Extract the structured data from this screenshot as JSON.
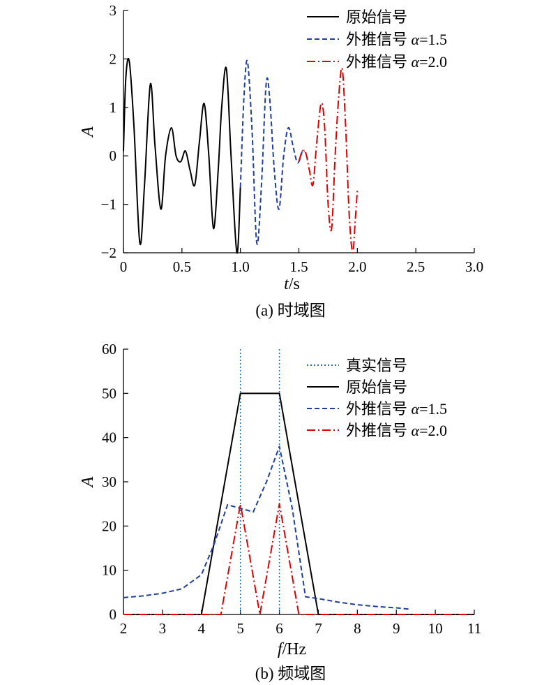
{
  "chart_data": [
    {
      "type": "line",
      "caption": "(a) 时域图",
      "xlabel_var": "t",
      "xlabel_unit": "/s",
      "ylabel": "A",
      "xlim": [
        0,
        3
      ],
      "ylim": [
        -2,
        3
      ],
      "xticks": [
        "0",
        "0.5",
        "1.0",
        "1.5",
        "2.0",
        "2.5",
        "3.0"
      ],
      "xtick_values": [
        0,
        0.5,
        1.0,
        1.5,
        2.0,
        2.5,
        3.0
      ],
      "yticks": [
        "−2",
        "−1",
        "0",
        "1",
        "2",
        "3"
      ],
      "ytick_values": [
        -2,
        -1,
        0,
        1,
        2,
        3
      ],
      "legend_position": "top-right",
      "series": [
        {
          "name": "原始信号",
          "style": "solid",
          "color": "#000000",
          "x_range": [
            0,
            1.0
          ],
          "x": [
            0,
            0.02,
            0.05,
            0.09,
            0.14,
            0.18,
            0.23,
            0.27,
            0.32,
            0.36,
            0.41,
            0.45,
            0.49,
            0.53,
            0.57,
            0.61,
            0.65,
            0.69,
            0.73,
            0.77,
            0.81,
            0.84,
            0.88,
            0.92,
            0.97,
            1.0
          ],
          "y": [
            0.1,
            1.6,
            1.95,
            0.6,
            -1.8,
            -0.6,
            1.48,
            0.2,
            -1.1,
            0.0,
            0.58,
            0.0,
            -0.12,
            0.1,
            -0.3,
            -0.6,
            0.3,
            1.08,
            0.0,
            -1.5,
            -0.3,
            1.0,
            1.8,
            0.0,
            -2.0,
            -0.65
          ]
        },
        {
          "name": "外推信号 α=1.5",
          "style": "dashed",
          "color": "#1f3f9f",
          "x_range": [
            1.0,
            1.55
          ],
          "x": [
            1.0,
            1.03,
            1.06,
            1.1,
            1.14,
            1.18,
            1.22,
            1.25,
            1.29,
            1.33,
            1.37,
            1.41,
            1.45,
            1.48,
            1.5,
            1.53,
            1.55
          ],
          "y": [
            -0.65,
            1.2,
            1.95,
            0.5,
            -1.8,
            -0.6,
            1.48,
            1.2,
            -0.3,
            -1.1,
            0.0,
            0.58,
            0.2,
            -0.1,
            -0.12,
            0.1,
            0.1
          ]
        },
        {
          "name": "外推信号 α=2.0",
          "style": "dashdot",
          "color": "#e00000",
          "x_range": [
            1.5,
            2.0
          ],
          "x": [
            1.5,
            1.53,
            1.56,
            1.59,
            1.62,
            1.65,
            1.69,
            1.72,
            1.75,
            1.78,
            1.81,
            1.84,
            1.87,
            1.9,
            1.93,
            1.96,
            1.98,
            2.0
          ],
          "y": [
            -0.12,
            0.1,
            0.05,
            -0.3,
            -0.6,
            0.2,
            1.08,
            0.6,
            -1.0,
            -1.5,
            0.0,
            1.2,
            1.8,
            0.6,
            -1.2,
            -2.0,
            -1.4,
            -0.7
          ]
        }
      ]
    },
    {
      "type": "line",
      "caption": "(b) 频域图",
      "xlabel_var": "f",
      "xlabel_unit": "/Hz",
      "ylabel": "A",
      "xlim": [
        2,
        11
      ],
      "ylim": [
        0,
        60
      ],
      "xticks": [
        "2",
        "3",
        "4",
        "5",
        "6",
        "7",
        "8",
        "9",
        "10",
        "11"
      ],
      "xtick_values": [
        2,
        3,
        4,
        5,
        6,
        7,
        8,
        9,
        10,
        11
      ],
      "yticks": [
        "0",
        "10",
        "20",
        "30",
        "40",
        "50",
        "60"
      ],
      "ytick_values": [
        0,
        10,
        20,
        30,
        40,
        50,
        60
      ],
      "legend_position": "top-right",
      "series": [
        {
          "name": "真实信号",
          "style": "dotted",
          "color": "#1f6fb4",
          "vertical_lines_x": [
            5,
            6
          ]
        },
        {
          "name": "原始信号",
          "style": "solid",
          "color": "#000000",
          "x": [
            2,
            4,
            5,
            6,
            7,
            11
          ],
          "y": [
            0,
            0,
            50,
            50,
            0,
            0
          ]
        },
        {
          "name": "外推信号 α=1.5",
          "style": "dashed",
          "color": "#1f3f9f",
          "x": [
            2,
            2.5,
            3,
            3.5,
            4,
            4.33,
            4.67,
            5,
            5.33,
            5.67,
            6,
            6.33,
            6.67,
            7,
            7.5,
            8,
            8.5,
            9,
            9.33
          ],
          "y": [
            3.8,
            4.2,
            4.8,
            5.8,
            9,
            16,
            24.8,
            24,
            23.2,
            30,
            38,
            24,
            4,
            3.6,
            2.8,
            2.2,
            1.8,
            1.5,
            1.2
          ]
        },
        {
          "name": "外推信号 α=2.0",
          "style": "dashdot",
          "color": "#e00000",
          "x": [
            2,
            4.5,
            5,
            5.5,
            6,
            6.5,
            11
          ],
          "y": [
            0,
            0,
            25,
            0,
            25,
            0,
            0
          ]
        }
      ]
    }
  ]
}
